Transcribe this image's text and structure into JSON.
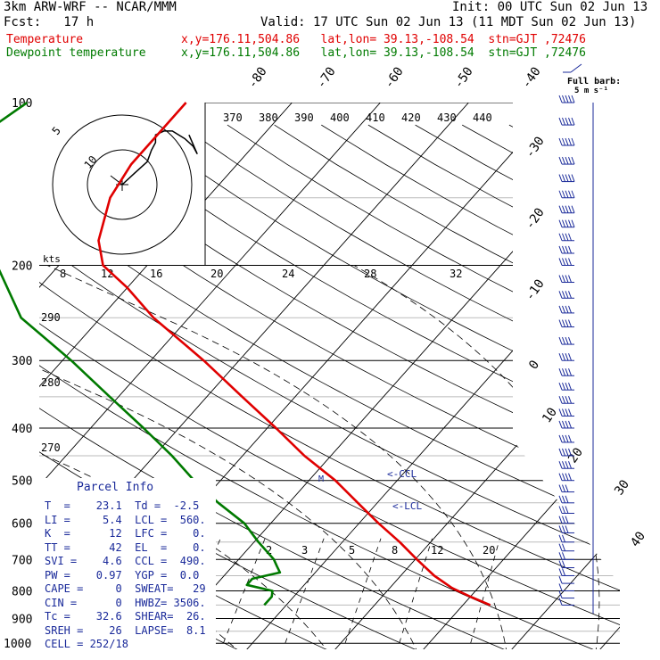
{
  "header": {
    "model": "3km ARW-WRF -- NCAR/MMM",
    "init": "Init: 00 UTC Sun 02 Jun 13",
    "fcst": "Fcst:   17 h",
    "valid": "Valid: 17 UTC Sun 02 Jun 13 (11 MDT Sun 02 Jun 13)",
    "temp_label": "Temperature",
    "dew_label": "Dewpoint temperature",
    "temp_loc": "x,y=176.11,504.86   lat,lon= 39.13,-108.54  stn=GJT ,72476",
    "dew_loc": "x,y=176.11,504.86   lat,lon= 39.13,-108.54  stn=GJT ,72476"
  },
  "barb_legend": {
    "line1": "Full barb:",
    "line2": "5 m s⁻¹"
  },
  "parcel": {
    "title": "Parcel Info",
    "rows": [
      "T  =    23.1  Td =  -2.5",
      "LI =     5.4  LCL =  560.",
      "K  =      12  LFC =    0.",
      "TT =      42  EL  =    0.",
      "SVI =    4.6  CCL =  490.",
      "PW =    0.97  YGP =  0.0",
      "CAPE =     0  SWEAT=   29",
      "CIN =      0  HWBZ= 3506.",
      "Tc =    32.6  SHEAR=  26.",
      "SREH =    26  LAPSE=  8.1",
      "CELL = 252/18"
    ]
  },
  "colors": {
    "temperature": "#e00000",
    "dewpoint": "#007a00",
    "barbs": "#1a2a9a"
  },
  "chart_data": {
    "type": "line",
    "title": "",
    "xlabel": "",
    "ylabel": "",
    "pressure_levels": [
      "100",
      "200",
      "300",
      "400",
      "500",
      "600",
      "700",
      "800",
      "900",
      "1000"
    ],
    "isotherm_labels": [
      "-80",
      "-70",
      "-60",
      "-50",
      "-40",
      "-30",
      "-20",
      "-10",
      "0",
      "10",
      "20",
      "30",
      "40"
    ],
    "mixing_ratio_top_labels": [
      "8",
      "12",
      "16",
      "20",
      "24",
      "28",
      "32"
    ],
    "mixing_ratio_low_labels": [
      "2",
      "3",
      "5",
      "8",
      "12",
      "20"
    ],
    "theta_labels": [
      "370",
      "380",
      "390",
      "400",
      "410",
      "420",
      "430",
      "440"
    ],
    "theta_left_labels": [
      "290",
      "280",
      "270"
    ],
    "hodograph": {
      "ring_labels": [
        "10",
        "5"
      ],
      "axis_label": "kts",
      "u": [
        0,
        3,
        6,
        7,
        8,
        8,
        10,
        12,
        15,
        17,
        18,
        16
      ],
      "v": [
        0,
        3,
        6,
        9,
        11,
        13,
        14,
        14,
        12,
        10,
        8,
        13
      ]
    },
    "lcl_marker_labels": [
      "<-CCL",
      "<-LCL"
    ],
    "series": [
      {
        "name": "Temperature",
        "pressure": [
          850,
          820,
          790,
          750,
          700,
          650,
          600,
          550,
          500,
          450,
          400,
          350,
          300,
          250,
          220,
          200,
          180,
          150,
          130,
          110,
          100
        ],
        "temp": [
          23.1,
          20,
          17,
          13.8,
          10.2,
          6.5,
          2.2,
          -2.2,
          -7,
          -13,
          -19,
          -26,
          -34,
          -44,
          -50,
          -55,
          -58,
          -61,
          -62,
          -62,
          -62
        ]
      },
      {
        "name": "Dewpoint temperature",
        "pressure": [
          850,
          820,
          800,
          780,
          760,
          740,
          720,
          700,
          650,
          600,
          550,
          500,
          450,
          400,
          350,
          300,
          250,
          200,
          170,
          150,
          130,
          115,
          100
        ],
        "temp": [
          -2.5,
          -2.5,
          -3,
          -6.5,
          -6.5,
          -4,
          -5,
          -6,
          -9.5,
          -13,
          -18,
          -23,
          -28,
          -34,
          -41,
          -49,
          -59,
          -67,
          -72,
          -78,
          -82,
          -82,
          -80
        ]
      }
    ],
    "wind_barbs": {
      "pressure": [
        100,
        110,
        120,
        130,
        140,
        150,
        160,
        170,
        180,
        190,
        200,
        215,
        230,
        245,
        260,
        280,
        300,
        320,
        340,
        360,
        380,
        400,
        425,
        450,
        475,
        500,
        525,
        550,
        575,
        600,
        625,
        650,
        675,
        700,
        725,
        750,
        775,
        800,
        825,
        850
      ],
      "speed_ms": [
        35,
        32,
        30,
        30,
        25,
        25,
        25,
        25,
        20,
        20,
        20,
        20,
        20,
        20,
        20,
        20,
        20,
        20,
        20,
        20,
        20,
        20,
        20,
        20,
        20,
        20,
        15,
        15,
        15,
        15,
        15,
        10,
        10,
        10,
        10,
        10,
        5,
        5,
        5,
        5
      ]
    }
  }
}
